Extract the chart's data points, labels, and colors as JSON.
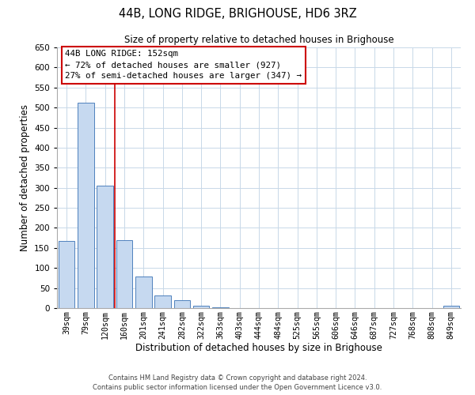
{
  "title": "44B, LONG RIDGE, BRIGHOUSE, HD6 3RZ",
  "subtitle": "Size of property relative to detached houses in Brighouse",
  "xlabel": "Distribution of detached houses by size in Brighouse",
  "ylabel": "Number of detached properties",
  "bar_labels": [
    "39sqm",
    "79sqm",
    "120sqm",
    "160sqm",
    "201sqm",
    "241sqm",
    "282sqm",
    "322sqm",
    "363sqm",
    "403sqm",
    "444sqm",
    "484sqm",
    "525sqm",
    "565sqm",
    "606sqm",
    "646sqm",
    "687sqm",
    "727sqm",
    "768sqm",
    "808sqm",
    "849sqm"
  ],
  "bar_values": [
    168,
    512,
    305,
    170,
    78,
    32,
    20,
    5,
    1,
    0,
    0,
    0,
    0,
    0,
    0,
    0,
    0,
    0,
    0,
    0,
    5
  ],
  "bar_color": "#c6d9f0",
  "bar_edge_color": "#4f81bd",
  "ylim": [
    0,
    650
  ],
  "yticks": [
    0,
    50,
    100,
    150,
    200,
    250,
    300,
    350,
    400,
    450,
    500,
    550,
    600,
    650
  ],
  "property_line_color": "#cc0000",
  "annotation_title": "44B LONG RIDGE: 152sqm",
  "annotation_line1": "← 72% of detached houses are smaller (927)",
  "annotation_line2": "27% of semi-detached houses are larger (347) →",
  "annotation_box_color": "#ffffff",
  "annotation_box_edge": "#cc0000",
  "footer_line1": "Contains HM Land Registry data © Crown copyright and database right 2024.",
  "footer_line2": "Contains public sector information licensed under the Open Government Licence v3.0.",
  "background_color": "#ffffff",
  "grid_color": "#c8d8e8"
}
